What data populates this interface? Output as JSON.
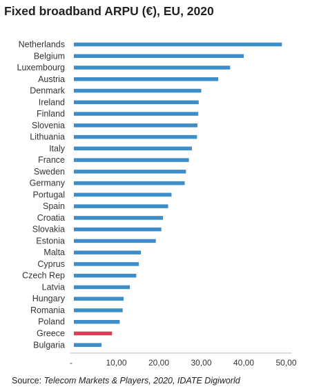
{
  "chart_data": {
    "type": "bar",
    "orientation": "horizontal",
    "title": "Fixed broadband ARPU (€), EU, 2020",
    "categories": [
      "Netherlands",
      "Belgium",
      "Luxembourg",
      "Austria",
      "Denmark",
      "Ireland",
      "Finland",
      "Slovenia",
      "Lithuania",
      "Italy",
      "France",
      "Sweden",
      "Germany",
      "Portugal",
      "Spain",
      "Croatia",
      "Slovakia",
      "Estonia",
      "Malta",
      "Cyprus",
      "Czech Rep",
      "Latvia",
      "Hungary",
      "Romania",
      "Poland",
      "Greece",
      "Bulgaria"
    ],
    "values": [
      49.0,
      40.0,
      36.8,
      34.0,
      30.0,
      29.4,
      29.3,
      29.1,
      29.0,
      27.8,
      27.1,
      26.4,
      26.1,
      23.0,
      22.2,
      21.0,
      20.6,
      19.3,
      15.8,
      15.3,
      14.7,
      13.2,
      11.7,
      11.5,
      10.8,
      9.0,
      6.5
    ],
    "highlight": "Greece",
    "xlim": [
      0,
      50
    ],
    "xticks": [
      "-",
      "10,00",
      "20,00",
      "30,00",
      "40,00",
      "50,00"
    ],
    "xtick_values": [
      0,
      10,
      20,
      30,
      40,
      50
    ],
    "colors": {
      "bar": "#3d8dcb",
      "highlight": "#d8405a",
      "axis": "#bbbbbb",
      "text": "#333333"
    },
    "grid": false,
    "legend": "none"
  },
  "source": {
    "prefix": "Source: ",
    "italic": "Telecom Markets & Players, 2020, IDATE Digiworld"
  }
}
